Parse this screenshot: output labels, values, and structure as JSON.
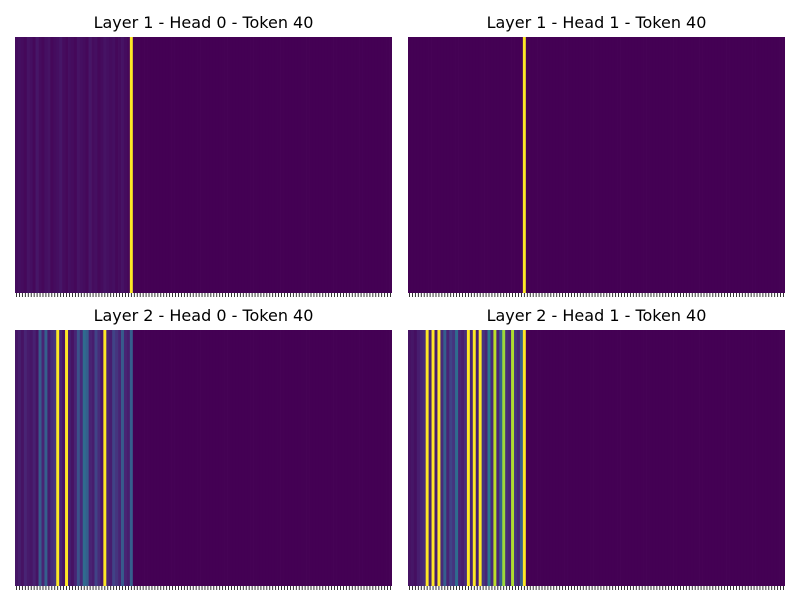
{
  "chart_data": [
    {
      "type": "heatmap",
      "title": "Layer 1 - Head 0 - Token 40",
      "colormap": "viridis",
      "num_tokens": 128,
      "vmin": 0,
      "vmax": 1,
      "x_tick_labels_shown": false,
      "y_tick_labels_shown": false,
      "attention": [
        0.03,
        0.04,
        0.03,
        0.02,
        0.05,
        0.04,
        0.02,
        0.06,
        0.03,
        0.02,
        0.04,
        0.05,
        0.02,
        0.03,
        0.04,
        0.06,
        0.03,
        0.02,
        0.04,
        0.03,
        0.02,
        0.05,
        0.04,
        0.03,
        0.02,
        0.06,
        0.03,
        0.04,
        0.02,
        0.03,
        0.05,
        0.04,
        0.03,
        0.04,
        0.02,
        0.03,
        0.05,
        0.03,
        0.02,
        1.0
      ]
    },
    {
      "type": "heatmap",
      "title": "Layer 1 - Head 1 - Token 40",
      "colormap": "viridis",
      "num_tokens": 128,
      "vmin": 0,
      "vmax": 1,
      "x_tick_labels_shown": false,
      "y_tick_labels_shown": false,
      "attention": [
        0,
        0,
        0,
        0,
        0,
        0,
        0,
        0,
        0,
        0,
        0,
        0,
        0,
        0,
        0,
        0,
        0,
        0,
        0,
        0,
        0,
        0,
        0,
        0,
        0,
        0,
        0,
        0,
        0,
        0,
        0,
        0,
        0,
        0,
        0,
        0,
        0,
        0,
        0,
        1.0
      ]
    },
    {
      "type": "heatmap",
      "title": "Layer 2 - Head 0 - Token 40",
      "colormap": "viridis",
      "num_tokens": 128,
      "vmin": 0,
      "vmax": 1,
      "x_tick_labels_shown": false,
      "y_tick_labels_shown": false,
      "attention": [
        0.06,
        0.08,
        0.05,
        0.1,
        0.07,
        0.06,
        0.09,
        0.05,
        0.28,
        0.1,
        0.3,
        0.08,
        0.12,
        0.15,
        1.0,
        0.1,
        0.06,
        1.0,
        0.08,
        0.05,
        0.1,
        0.25,
        0.12,
        0.35,
        0.3,
        0.1,
        0.08,
        0.2,
        0.12,
        0.06,
        1.0,
        0.1,
        0.08,
        0.2,
        0.15,
        0.1,
        0.28,
        0.1,
        0.08,
        0.3
      ]
    },
    {
      "type": "heatmap",
      "title": "Layer 2 - Head 1 - Token 40",
      "colormap": "viridis",
      "num_tokens": 128,
      "vmin": 0,
      "vmax": 1,
      "x_tick_labels_shown": false,
      "y_tick_labels_shown": false,
      "attention": [
        0.05,
        0.06,
        0.04,
        0.08,
        0.1,
        0.12,
        1.0,
        0.1,
        1.0,
        0.08,
        1.0,
        0.12,
        0.3,
        0.1,
        0.2,
        0.15,
        0.35,
        0.1,
        0.08,
        0.12,
        1.0,
        0.1,
        1.0,
        0.08,
        1.0,
        0.15,
        0.1,
        0.4,
        0.12,
        0.9,
        0.1,
        0.3,
        0.85,
        0.12,
        0.1,
        0.88,
        0.15,
        0.1,
        0.3,
        1.0
      ]
    }
  ]
}
